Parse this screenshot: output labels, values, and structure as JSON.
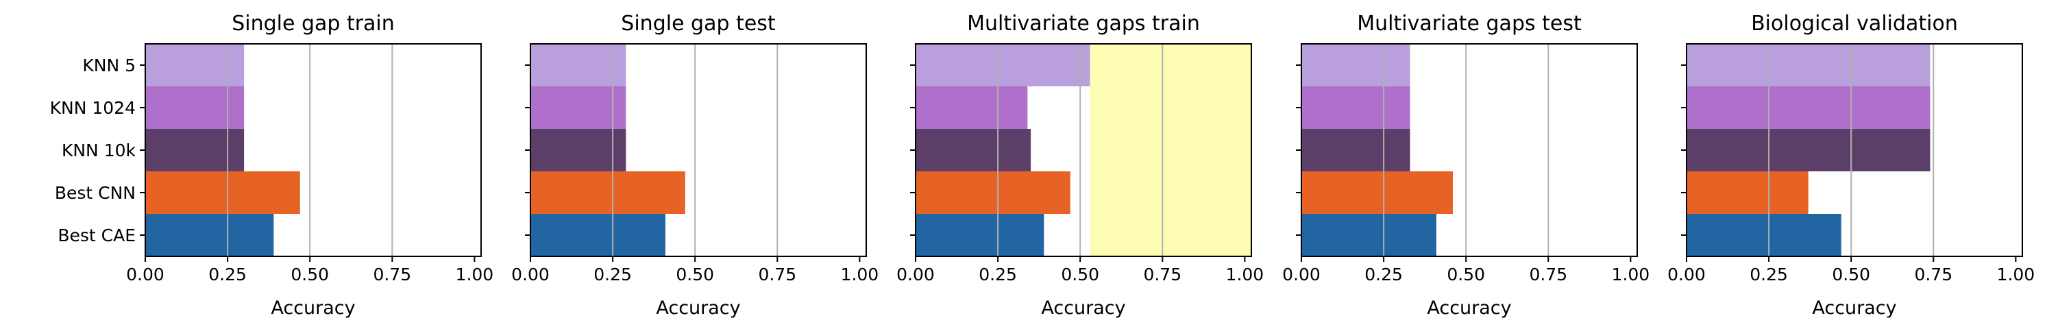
{
  "chart_data": [
    {
      "type": "bar",
      "orientation": "horizontal",
      "title": "Single gap train",
      "xlabel": "Accuracy",
      "xlim": [
        0,
        1.02
      ],
      "xticks": [
        "0.00",
        "0.25",
        "0.50",
        "0.75",
        "1.00"
      ],
      "grid": "x",
      "highlight": null,
      "categories": [
        "KNN 5",
        "KNN 1024",
        "KNN 10k",
        "Best CNN",
        "Best CAE"
      ],
      "values": [
        0.3,
        0.3,
        0.3,
        0.47,
        0.39
      ]
    },
    {
      "type": "bar",
      "orientation": "horizontal",
      "title": "Single gap test",
      "xlabel": "Accuracy",
      "xlim": [
        0,
        1.02
      ],
      "xticks": [
        "0.00",
        "0.25",
        "0.50",
        "0.75",
        "1.00"
      ],
      "grid": "x",
      "highlight": null,
      "categories": [
        "KNN 5",
        "KNN 1024",
        "KNN 10k",
        "Best CNN",
        "Best CAE"
      ],
      "values": [
        0.29,
        0.29,
        0.29,
        0.47,
        0.41
      ]
    },
    {
      "type": "bar",
      "orientation": "horizontal",
      "title": "Multivariate gaps train",
      "xlabel": "Accuracy",
      "xlim": [
        0,
        1.02
      ],
      "xticks": [
        "0.00",
        "0.25",
        "0.50",
        "0.75",
        "1.00"
      ],
      "grid": "x",
      "highlight": {
        "from": 0.53,
        "to": 1.02,
        "color": "#fdfdb3"
      },
      "categories": [
        "KNN 5",
        "KNN 1024",
        "KNN 10k",
        "Best CNN",
        "Best CAE"
      ],
      "values": [
        0.53,
        0.34,
        0.35,
        0.47,
        0.39
      ]
    },
    {
      "type": "bar",
      "orientation": "horizontal",
      "title": "Multivariate gaps test",
      "xlabel": "Accuracy",
      "xlim": [
        0,
        1.02
      ],
      "xticks": [
        "0.00",
        "0.25",
        "0.50",
        "0.75",
        "1.00"
      ],
      "grid": "x",
      "highlight": null,
      "categories": [
        "KNN 5",
        "KNN 1024",
        "KNN 10k",
        "Best CNN",
        "Best CAE"
      ],
      "values": [
        0.33,
        0.33,
        0.33,
        0.46,
        0.41
      ]
    },
    {
      "type": "bar",
      "orientation": "horizontal",
      "title": "Biological validation",
      "xlabel": "Accuracy",
      "xlim": [
        0,
        1.02
      ],
      "xticks": [
        "0.00",
        "0.25",
        "0.50",
        "0.75",
        "1.00"
      ],
      "grid": "x",
      "highlight": null,
      "categories": [
        "KNN 5",
        "KNN 1024",
        "KNN 10k",
        "Best CNN",
        "Best CAE"
      ],
      "values": [
        0.74,
        0.74,
        0.74,
        0.37,
        0.47
      ]
    }
  ],
  "colors": {
    "KNN 5": "#b9a0dc",
    "KNN 1024": "#af70cb",
    "KNN 10k": "#5c3f69",
    "Best CNN": "#e66325",
    "Best CAE": "#2166a3",
    "grid": "#b0b0b0",
    "axis": "#000000"
  }
}
